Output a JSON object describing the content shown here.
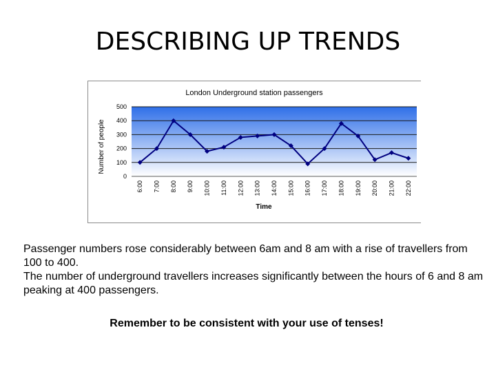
{
  "slide": {
    "title": "DESCRIBING UP TRENDS",
    "paragraph_1": "Passenger numbers rose considerably between 6am and 8 am with a rise of travellers from 100 to 400.",
    "paragraph_2": "The number of underground travellers increases significantly between the hours of 6 and 8 am peaking at 400 passengers.",
    "reminder": "Remember to be consistent with your use of tenses!"
  },
  "chart_data": {
    "type": "line",
    "title": "London Underground station passengers",
    "xlabel": "Time",
    "ylabel": "Number of people",
    "categories": [
      "6:00",
      "7:00",
      "8:00",
      "9:00",
      "10:00",
      "11:00",
      "12:00",
      "13:00",
      "14:00",
      "15:00",
      "16:00",
      "17:00",
      "18:00",
      "19:00",
      "20:00",
      "21:00",
      "22:00"
    ],
    "values": [
      100,
      200,
      400,
      300,
      180,
      210,
      280,
      290,
      300,
      220,
      90,
      200,
      380,
      290,
      120,
      170,
      130
    ],
    "yticks": [
      0,
      100,
      200,
      300,
      400,
      500
    ],
    "ylim": [
      0,
      500
    ],
    "grid": true,
    "legend": "none",
    "colors": {
      "line": "#000080",
      "plot_top": "#2f6fe8",
      "plot_bottom": "#ffffff",
      "gridline": "#1a1a1a"
    }
  }
}
